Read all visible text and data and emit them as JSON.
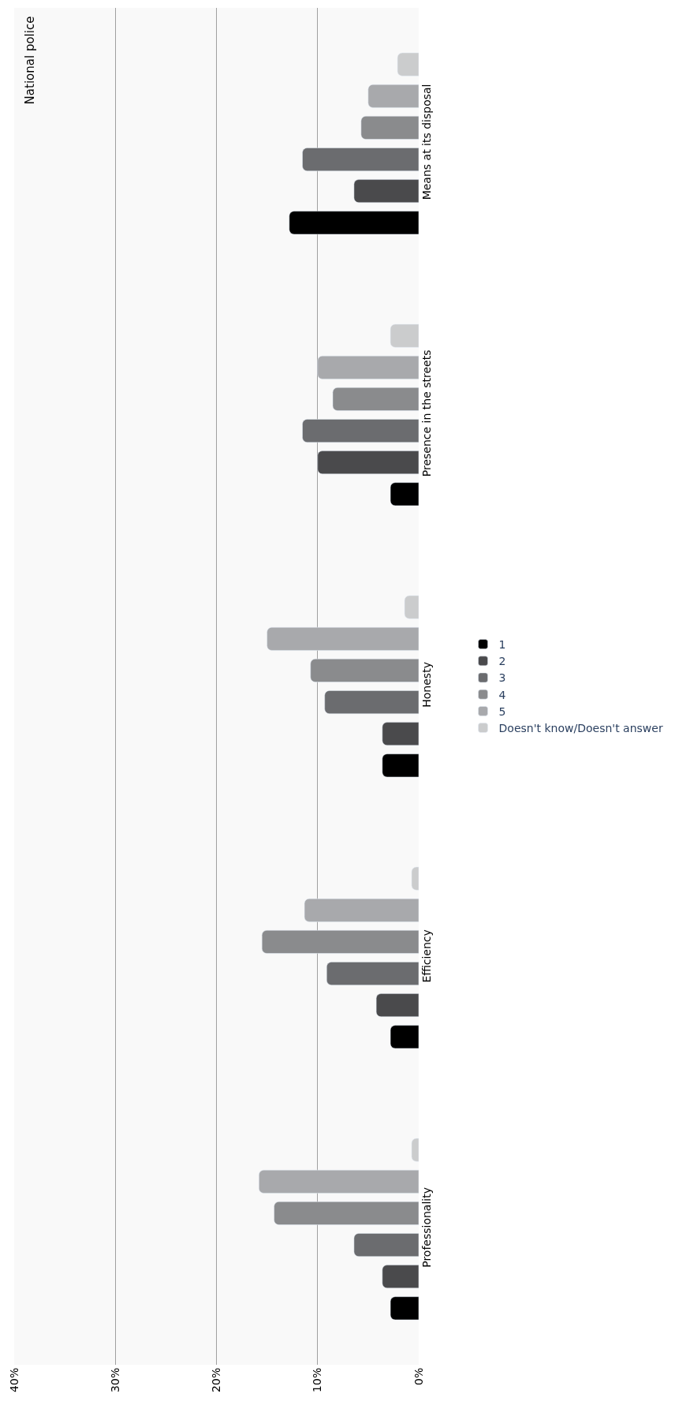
{
  "chart_data": {
    "type": "bar",
    "orientation": "horizontal",
    "title": "National police",
    "categories": [
      "Means at its disposal",
      "Presence in the streets",
      "Honesty",
      "Efficiency",
      "Professionality"
    ],
    "series": [
      {
        "name": "1",
        "color": "#000000",
        "values": [
          12.8,
          2.8,
          3.6,
          2.8,
          2.8
        ]
      },
      {
        "name": "2",
        "color": "#4a4a4c",
        "values": [
          6.4,
          10.0,
          3.6,
          4.2,
          3.6
        ]
      },
      {
        "name": "3",
        "color": "#6b6c6f",
        "values": [
          11.5,
          11.5,
          9.3,
          9.1,
          6.4
        ]
      },
      {
        "name": "4",
        "color": "#8a8b8d",
        "values": [
          5.7,
          8.5,
          10.7,
          15.5,
          14.3
        ]
      },
      {
        "name": "5",
        "color": "#a8a9ac",
        "values": [
          5.0,
          10.0,
          15.0,
          11.3,
          15.8
        ]
      },
      {
        "name": "Doesn't know/Doesn't answer",
        "color": "#cbcccd",
        "values": [
          2.1,
          2.8,
          1.4,
          0.7,
          0.7
        ]
      }
    ],
    "xlim": [
      40,
      0
    ],
    "xticks": [
      {
        "value": 0,
        "label": "0%"
      },
      {
        "value": 10,
        "label": "10%"
      },
      {
        "value": 20,
        "label": "20%"
      },
      {
        "value": 30,
        "label": "30%"
      },
      {
        "value": 40,
        "label": "40%"
      }
    ],
    "grid": "x",
    "legend": "right"
  }
}
